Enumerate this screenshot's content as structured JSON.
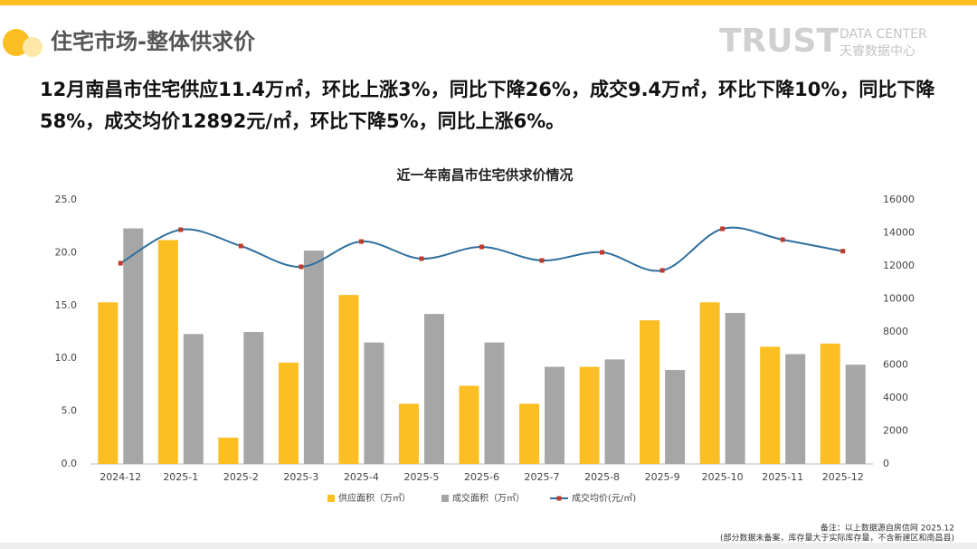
{
  "header": {
    "title": "住宅市场-整体供求价",
    "brand": "TRUST",
    "brand_sub": "DATA CENTER",
    "brand_cn": "天睿数据中心"
  },
  "summary": "12月南昌市住宅供应11.4万㎡，环比上涨3%，同比下降26%，成交9.4万㎡，环比下降10%，同比下降58%，成交均价12892元/㎡，环比下降5%，同比上涨6%。",
  "chart_data": {
    "type": "bar_line",
    "title": "近一年南昌市住宅供求价情况",
    "categories": [
      "2024-12",
      "2025-1",
      "2025-2",
      "2025-3",
      "2025-4",
      "2025-5",
      "2025-6",
      "2025-7",
      "2025-8",
      "2025-9",
      "2025-10",
      "2025-11",
      "2025-12"
    ],
    "series": [
      {
        "name": "供应面积（万㎡）",
        "color": "#fbbf24",
        "type": "bar",
        "values": [
          15.3,
          21.2,
          2.5,
          9.6,
          16.0,
          5.7,
          7.4,
          5.7,
          9.2,
          13.6,
          15.3,
          11.1,
          11.4
        ]
      },
      {
        "name": "成交面积（万㎡）",
        "color": "#a6a6a6",
        "type": "bar",
        "values": [
          22.3,
          12.3,
          12.5,
          20.2,
          11.5,
          14.2,
          11.5,
          9.2,
          9.9,
          8.9,
          14.3,
          10.4,
          9.4
        ]
      },
      {
        "name": "成交均价(元/㎡)",
        "color": "#2e6f9e",
        "marker_color": "#c0392b",
        "type": "line",
        "axis": "y2",
        "values": [
          12164,
          14192,
          13205,
          11945,
          13479,
          12438,
          13151,
          12329,
          12822,
          11726,
          14247,
          13589,
          12892
        ]
      }
    ],
    "ylim": [
      0,
      25
    ],
    "yticks": [
      {
        "value": 0,
        "label": "0.0"
      },
      {
        "value": 5,
        "label": "5.0"
      },
      {
        "value": 10,
        "label": "10.0"
      },
      {
        "value": 15,
        "label": "15.0"
      },
      {
        "value": 20,
        "label": "20.0"
      },
      {
        "value": 25,
        "label": "25.0"
      }
    ],
    "y2lim": [
      0,
      16000
    ],
    "y2ticks": [
      0,
      2000,
      4000,
      6000,
      8000,
      10000,
      12000,
      14000,
      16000
    ],
    "legend": "bottom"
  },
  "footnote": [
    "备注：以上数据源自房信网   2025.12",
    "(部分数据未备案，库存量大于实际库存量，不含新建区和南昌县)"
  ]
}
